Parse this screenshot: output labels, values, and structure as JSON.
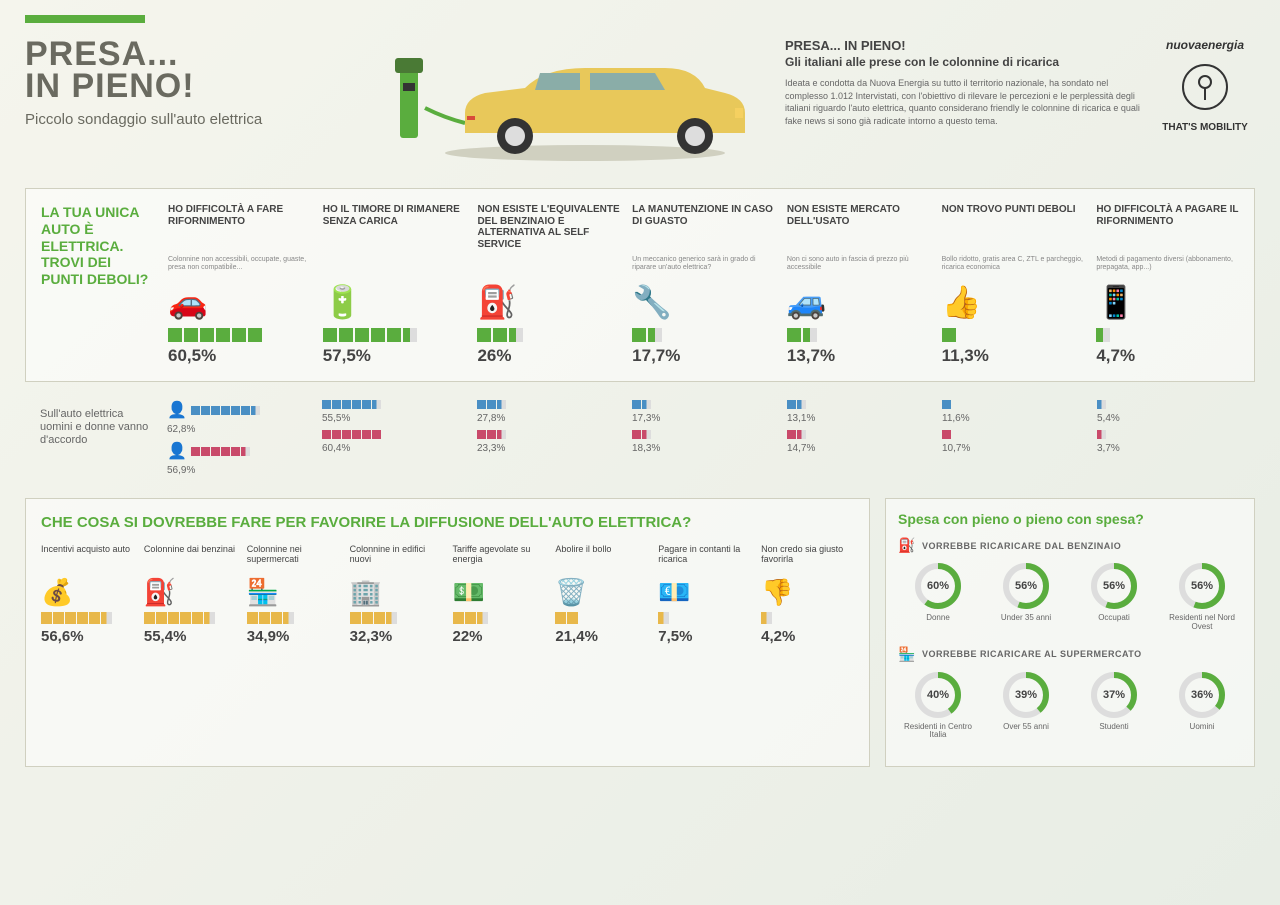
{
  "header": {
    "title_line1": "PRESA...",
    "title_line2": "IN PIENO!",
    "subtitle": "Piccolo sondaggio sull'auto elettrica",
    "desc_title": "PRESA... IN PIENO!",
    "desc_sub": "Gli italiani alle prese con le colonnine di ricarica",
    "desc_text": "Ideata e condotta da Nuova Energia su tutto il territorio nazionale, ha sondato nel complesso 1.012 Intervistati, con l'obiettivo di rilevare le percezioni e le perplessità degli italiani riguardo l'auto elettrica, quanto considerano friendly le colonnine di ricarica e quali fake news si sono già radicate intorno a questo tema.",
    "logo1": "nuovaenergia",
    "logo2": "THAT'S MOBILITY"
  },
  "colors": {
    "green": "#5aad3e",
    "blue": "#4a8fc4",
    "red": "#c94a6a",
    "yellow": "#e8b84a",
    "text": "#444"
  },
  "s1": {
    "question": "LA TUA UNICA AUTO È ELETTRICA. TROVI DEI PUNTI DEBOLI?",
    "cols": [
      {
        "title": "HO DIFFICOLTÀ A FARE RIFORNIMENTO",
        "sub": "Colonnine non accessibili, occupate, guaste, presa non compatibile...",
        "pct": "60,5%",
        "segs": 6
      },
      {
        "title": "HO IL TIMORE DI RIMANERE SENZA CARICA",
        "sub": "",
        "pct": "57,5%",
        "segs": 5.8
      },
      {
        "title": "NON ESISTE L'EQUIVALENTE DEL BENZINAIO E ALTERNATIVA AL SELF SERVICE",
        "sub": "",
        "pct": "26%",
        "segs": 2.6
      },
      {
        "title": "LA MANUTENZIONE IN CASO DI GUASTO",
        "sub": "Un meccanico generico sarà in grado di riparare un'auto elettrica?",
        "pct": "17,7%",
        "segs": 1.8
      },
      {
        "title": "NON ESISTE MERCATO DELL'USATO",
        "sub": "Non ci sono auto in fascia di prezzo più accessibile",
        "pct": "13,7%",
        "segs": 1.4
      },
      {
        "title": "NON TROVO PUNTI DEBOLI",
        "sub": "Bollo ridotto, gratis area C, ZTL e parcheggio, ricarica economica",
        "pct": "11,3%",
        "segs": 1.1
      },
      {
        "title": "HO DIFFICOLTÀ A PAGARE IL RIFORNIMENTO",
        "sub": "Metodi di pagamento diversi (abbonamento, prepagata, app...)",
        "pct": "4,7%",
        "segs": 0.5
      }
    ]
  },
  "s2": {
    "label": "Sull'auto elettrica uomini e donne vanno d'accordo",
    "cols": [
      {
        "m": "62,8%",
        "ms": 6.3,
        "f": "56,9%",
        "fs": 5.7
      },
      {
        "m": "55,5%",
        "ms": 5.6,
        "f": "60,4%",
        "fs": 6
      },
      {
        "m": "27,8%",
        "ms": 2.8,
        "f": "23,3%",
        "fs": 2.3
      },
      {
        "m": "17,3%",
        "ms": 1.7,
        "f": "18,3%",
        "fs": 1.8
      },
      {
        "m": "13,1%",
        "ms": 1.3,
        "f": "14,7%",
        "fs": 1.5
      },
      {
        "m": "11,6%",
        "ms": 1.2,
        "f": "10,7%",
        "fs": 1.1
      },
      {
        "m": "5,4%",
        "ms": 0.5,
        "f": "3,7%",
        "fs": 0.4
      }
    ]
  },
  "s3": {
    "title": "CHE COSA SI DOVREBBE FARE PER FAVORIRE LA DIFFUSIONE DELL'AUTO ELETTRICA?",
    "cols": [
      {
        "title": "Incentivi acquisto auto",
        "pct": "56,6%",
        "segs": 5.7
      },
      {
        "title": "Colonnine dai benzinai",
        "pct": "55,4%",
        "segs": 5.5
      },
      {
        "title": "Colonnine nei supermercati",
        "pct": "34,9%",
        "segs": 3.5
      },
      {
        "title": "Colonnine in edifici nuovi",
        "pct": "32,3%",
        "segs": 3.2
      },
      {
        "title": "Tariffe agevolate su energia",
        "pct": "22%",
        "segs": 2.2
      },
      {
        "title": "Abolire il bollo",
        "pct": "21,4%",
        "segs": 2.1
      },
      {
        "title": "Pagare in contanti la ricarica",
        "pct": "7,5%",
        "segs": 0.8
      },
      {
        "title": "Non credo sia giusto favorirla",
        "pct": "4,2%",
        "segs": 0.4
      }
    ]
  },
  "s4": {
    "title": "Spesa con pieno o pieno con spesa?",
    "sub1": "VORREBBE RICARICARE DAL BENZINAIO",
    "sub2": "VORREBBE RICARICARE AL SUPERMERCATO",
    "row1": [
      {
        "pct": 60,
        "label": "Donne"
      },
      {
        "pct": 56,
        "label": "Under 35 anni"
      },
      {
        "pct": 56,
        "label": "Occupati"
      },
      {
        "pct": 56,
        "label": "Residenti nel Nord Ovest"
      }
    ],
    "row2": [
      {
        "pct": 40,
        "label": "Residenti in Centro Italia"
      },
      {
        "pct": 39,
        "label": "Over 55 anni"
      },
      {
        "pct": 37,
        "label": "Studenti"
      },
      {
        "pct": 36,
        "label": "Uomini"
      }
    ]
  }
}
